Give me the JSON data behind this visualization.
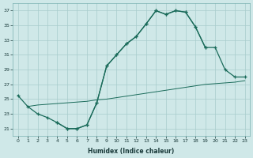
{
  "xlabel": "Humidex (Indice chaleur)",
  "background_color": "#cfe8e8",
  "grid_color": "#a8cccc",
  "line_color": "#1a6b5a",
  "xlim": [
    -0.5,
    23.5
  ],
  "ylim": [
    20.0,
    38.0
  ],
  "xticks": [
    0,
    1,
    2,
    3,
    4,
    5,
    6,
    7,
    8,
    9,
    10,
    11,
    12,
    13,
    14,
    15,
    16,
    17,
    18,
    19,
    20,
    21,
    22,
    23
  ],
  "yticks": [
    21,
    23,
    25,
    27,
    29,
    31,
    33,
    35,
    37
  ],
  "curve1_x": [
    0,
    1,
    2,
    3,
    4,
    5,
    6,
    7,
    8,
    9,
    10,
    11,
    12,
    13,
    14,
    15,
    16,
    17,
    18,
    19
  ],
  "curve1_y": [
    25.5,
    24.0,
    23.0,
    22.5,
    21.8,
    21.0,
    21.0,
    21.5,
    24.5,
    29.5,
    31.0,
    32.5,
    33.5,
    35.2,
    37.0,
    36.5,
    37.0,
    36.8,
    34.8,
    32.0
  ],
  "curve2_x": [
    4,
    5,
    6,
    7,
    8,
    9,
    10,
    11,
    12,
    13,
    14,
    15,
    16,
    17,
    18,
    19,
    20,
    21,
    22,
    23
  ],
  "curve2_y": [
    21.8,
    21.0,
    21.0,
    21.5,
    24.5,
    29.5,
    31.0,
    32.5,
    33.5,
    35.2,
    37.0,
    36.5,
    37.0,
    36.8,
    34.8,
    32.0,
    32.0,
    29.0,
    28.0,
    28.0
  ],
  "curve3_x": [
    1,
    2,
    3,
    4,
    5,
    6,
    7,
    8,
    9,
    10,
    11,
    12,
    13,
    14,
    15,
    16,
    17,
    18,
    19,
    20,
    21,
    22,
    23
  ],
  "curve3_y": [
    24.0,
    24.2,
    24.3,
    24.4,
    24.5,
    24.6,
    24.7,
    24.9,
    25.0,
    25.2,
    25.4,
    25.6,
    25.8,
    26.0,
    26.2,
    26.4,
    26.6,
    26.8,
    27.0,
    27.1,
    27.2,
    27.3,
    27.5
  ]
}
